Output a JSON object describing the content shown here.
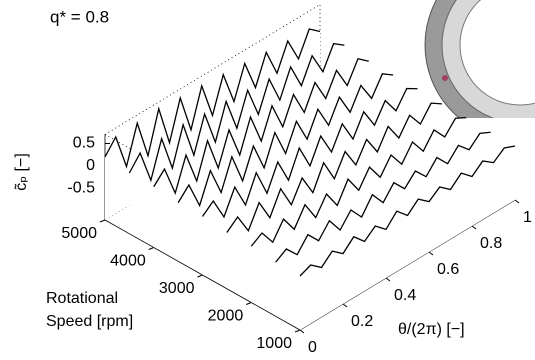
{
  "chart_data": {
    "type": "waterfall",
    "title": "q* = 0.8",
    "xlabel": "θ/(2π) [−]",
    "ylabel": [
      "Rotational",
      "Speed [rpm]"
    ],
    "zlabel": "c̃ₚ [−]",
    "xlim": [
      0,
      1
    ],
    "xticks": [
      0,
      0.2,
      0.4,
      0.6,
      0.8,
      1
    ],
    "ylim": [
      1000,
      5000
    ],
    "yticks": [
      1000,
      2000,
      3000,
      4000,
      5000
    ],
    "zlim": [
      -1.2,
      0.7
    ],
    "zticks": [
      -0.5,
      0,
      0.5
    ],
    "color": "#000000",
    "x": [
      0,
      0.05,
      0.1,
      0.15,
      0.2,
      0.25,
      0.3,
      0.35,
      0.4,
      0.45,
      0.5,
      0.55,
      0.6,
      0.65,
      0.7,
      0.75,
      0.8,
      0.85,
      0.9,
      0.95,
      1
    ],
    "series": [
      {
        "y": 1000,
        "values": [
          0,
          0.1,
          -0.1,
          0.12,
          -0.08,
          0.15,
          -0.1,
          0.1,
          -0.12,
          0.14,
          -0.1,
          0.12,
          -0.08,
          0.1,
          -0.1,
          0.12,
          -0.1,
          0.1,
          -0.08,
          0.1,
          0
        ]
      },
      {
        "y": 1500,
        "values": [
          0,
          0.15,
          -0.12,
          0.18,
          -0.1,
          0.2,
          -0.15,
          0.15,
          -0.15,
          0.2,
          -0.12,
          0.18,
          -0.1,
          0.15,
          -0.12,
          0.16,
          -0.12,
          0.14,
          -0.1,
          0.12,
          0
        ]
      },
      {
        "y": 2000,
        "values": [
          0.05,
          0.2,
          -0.15,
          0.22,
          -0.15,
          0.25,
          -0.18,
          0.2,
          -0.2,
          0.24,
          -0.15,
          0.22,
          -0.15,
          0.2,
          -0.15,
          0.2,
          -0.15,
          0.18,
          -0.12,
          0.15,
          0.02
        ]
      },
      {
        "y": 2500,
        "values": [
          0.05,
          0.25,
          -0.2,
          0.28,
          -0.2,
          0.3,
          -0.2,
          0.25,
          -0.22,
          0.3,
          -0.2,
          0.26,
          -0.18,
          0.24,
          -0.18,
          0.24,
          -0.16,
          0.2,
          -0.14,
          0.18,
          0.02
        ]
      },
      {
        "y": 3000,
        "values": [
          0.1,
          0.3,
          -0.2,
          0.32,
          -0.22,
          0.35,
          -0.25,
          0.3,
          -0.25,
          0.32,
          -0.22,
          0.3,
          -0.2,
          0.28,
          -0.2,
          0.26,
          -0.18,
          0.22,
          -0.15,
          0.2,
          0.05
        ]
      },
      {
        "y": 3500,
        "values": [
          0.1,
          0.35,
          -0.25,
          0.38,
          -0.25,
          0.4,
          -0.28,
          0.35,
          -0.28,
          0.36,
          -0.25,
          0.32,
          -0.22,
          0.3,
          -0.2,
          0.28,
          -0.2,
          0.25,
          -0.18,
          0.22,
          0.05
        ]
      },
      {
        "y": 4000,
        "values": [
          0.15,
          0.4,
          -0.28,
          0.42,
          -0.3,
          0.45,
          -0.3,
          0.4,
          -0.3,
          0.4,
          -0.28,
          0.36,
          -0.25,
          0.32,
          -0.22,
          0.3,
          -0.2,
          0.28,
          -0.2,
          0.25,
          0.05
        ]
      },
      {
        "y": 4500,
        "values": [
          0.15,
          0.45,
          -0.3,
          0.48,
          -0.32,
          0.5,
          -0.32,
          0.45,
          -0.32,
          0.44,
          -0.3,
          0.4,
          -0.28,
          0.36,
          -0.25,
          0.34,
          -0.22,
          0.3,
          -0.2,
          0.28,
          0.1
        ]
      },
      {
        "y": 5000,
        "values": [
          0.2,
          0.5,
          -0.3,
          0.52,
          -0.35,
          0.55,
          -0.35,
          0.5,
          -0.35,
          0.48,
          -0.32,
          0.44,
          -0.3,
          0.4,
          -0.28,
          0.36,
          -0.25,
          0.32,
          -0.22,
          0.3,
          0.1
        ]
      }
    ]
  }
}
